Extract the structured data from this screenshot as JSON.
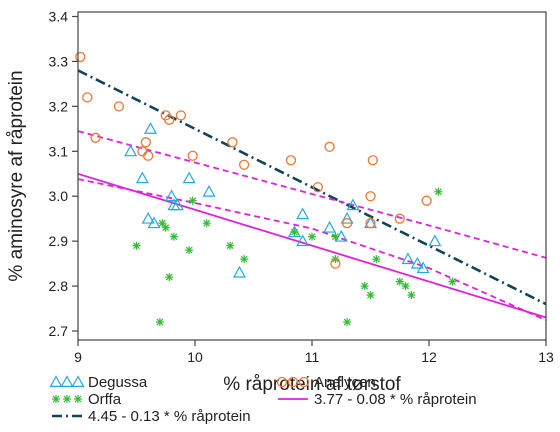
{
  "chart_data": {
    "type": "scatter",
    "xlabel": "% råprotein af tørstof",
    "ylabel": "% aminosyre af råprotein",
    "xlim": [
      9,
      13
    ],
    "ylim": [
      2.68,
      3.41
    ],
    "xticks": [
      9,
      10,
      11,
      12,
      13
    ],
    "yticks": [
      2.7,
      2.8,
      2.9,
      3.0,
      3.1,
      3.2,
      3.3,
      3.4
    ],
    "xtick_labels": [
      "9",
      "10",
      "11",
      "12",
      "13"
    ],
    "ytick_labels": [
      "2.7",
      "2.8",
      "2.9",
      "3.0",
      "3.1",
      "3.2",
      "3.3",
      "3.4"
    ],
    "grid": false,
    "legend_position": "bottom",
    "series": [
      {
        "name": "Degussa",
        "marker": "triangle",
        "color": "#22aadd",
        "points": [
          [
            9.45,
            3.1
          ],
          [
            9.62,
            3.15
          ],
          [
            9.55,
            3.04
          ],
          [
            9.6,
            2.95
          ],
          [
            9.65,
            2.94
          ],
          [
            9.8,
            3.0
          ],
          [
            9.82,
            2.98
          ],
          [
            9.85,
            2.98
          ],
          [
            9.95,
            3.04
          ],
          [
            10.12,
            3.01
          ],
          [
            10.38,
            2.83
          ],
          [
            10.92,
            2.96
          ],
          [
            10.85,
            2.92
          ],
          [
            10.92,
            2.9
          ],
          [
            11.15,
            2.93
          ],
          [
            11.25,
            2.91
          ],
          [
            11.3,
            2.95
          ],
          [
            11.35,
            2.98
          ],
          [
            11.5,
            2.94
          ],
          [
            11.82,
            2.86
          ],
          [
            11.9,
            2.85
          ],
          [
            11.95,
            2.84
          ],
          [
            12.05,
            2.9
          ]
        ]
      },
      {
        "name": "Orffa",
        "marker": "star",
        "color": "#33bb33",
        "points": [
          [
            9.5,
            2.89
          ],
          [
            9.72,
            2.94
          ],
          [
            9.75,
            2.93
          ],
          [
            9.78,
            2.82
          ],
          [
            9.82,
            2.91
          ],
          [
            9.95,
            2.88
          ],
          [
            9.98,
            2.99
          ],
          [
            10.1,
            2.94
          ],
          [
            10.3,
            2.89
          ],
          [
            10.42,
            2.86
          ],
          [
            9.7,
            2.72
          ],
          [
            10.85,
            2.92
          ],
          [
            11.0,
            2.91
          ],
          [
            11.2,
            2.86
          ],
          [
            11.3,
            2.72
          ],
          [
            11.45,
            2.8
          ],
          [
            11.5,
            2.78
          ],
          [
            11.55,
            2.86
          ],
          [
            11.75,
            2.81
          ],
          [
            11.8,
            2.8
          ],
          [
            11.85,
            2.78
          ],
          [
            12.08,
            3.01
          ],
          [
            12.2,
            2.81
          ],
          [
            11.2,
            2.91
          ]
        ]
      },
      {
        "name": "Analycen",
        "marker": "circle",
        "color": "#ee7733",
        "points": [
          [
            9.02,
            3.31
          ],
          [
            9.08,
            3.22
          ],
          [
            9.15,
            3.13
          ],
          [
            9.35,
            3.2
          ],
          [
            9.55,
            3.1
          ],
          [
            9.58,
            3.12
          ],
          [
            9.6,
            3.09
          ],
          [
            9.75,
            3.18
          ],
          [
            9.78,
            3.17
          ],
          [
            9.88,
            3.18
          ],
          [
            9.98,
            3.09
          ],
          [
            10.32,
            3.12
          ],
          [
            10.42,
            3.07
          ],
          [
            10.82,
            3.08
          ],
          [
            11.05,
            3.02
          ],
          [
            11.15,
            3.11
          ],
          [
            11.2,
            2.85
          ],
          [
            11.3,
            2.94
          ],
          [
            11.5,
            3.0
          ],
          [
            11.52,
            3.08
          ],
          [
            11.5,
            2.94
          ],
          [
            11.75,
            2.95
          ],
          [
            11.98,
            2.99
          ]
        ]
      }
    ],
    "lines": [
      {
        "name": "4.45 - 0.13 * % råprotein",
        "intercept": 4.45,
        "slope": -0.13,
        "style": "dash-dot",
        "color": "#114455"
      },
      {
        "name": "3.77 - 0.08 * % råprotein",
        "intercept": 3.77,
        "slope": -0.08,
        "style": "solid",
        "color": "#dd22dd"
      },
      {
        "name": "upper band",
        "points": [
          [
            9,
            3.145
          ],
          [
            10,
            3.075
          ],
          [
            11,
            3.005
          ],
          [
            12,
            2.935
          ],
          [
            13,
            2.863
          ]
        ],
        "style": "dashed",
        "color": "#dd22dd"
      },
      {
        "name": "lower band",
        "points": [
          [
            9,
            3.038
          ],
          [
            10,
            2.985
          ],
          [
            11,
            2.928
          ],
          [
            12,
            2.84
          ],
          [
            13,
            2.724
          ]
        ],
        "style": "dashed",
        "color": "#dd22dd"
      }
    ]
  }
}
